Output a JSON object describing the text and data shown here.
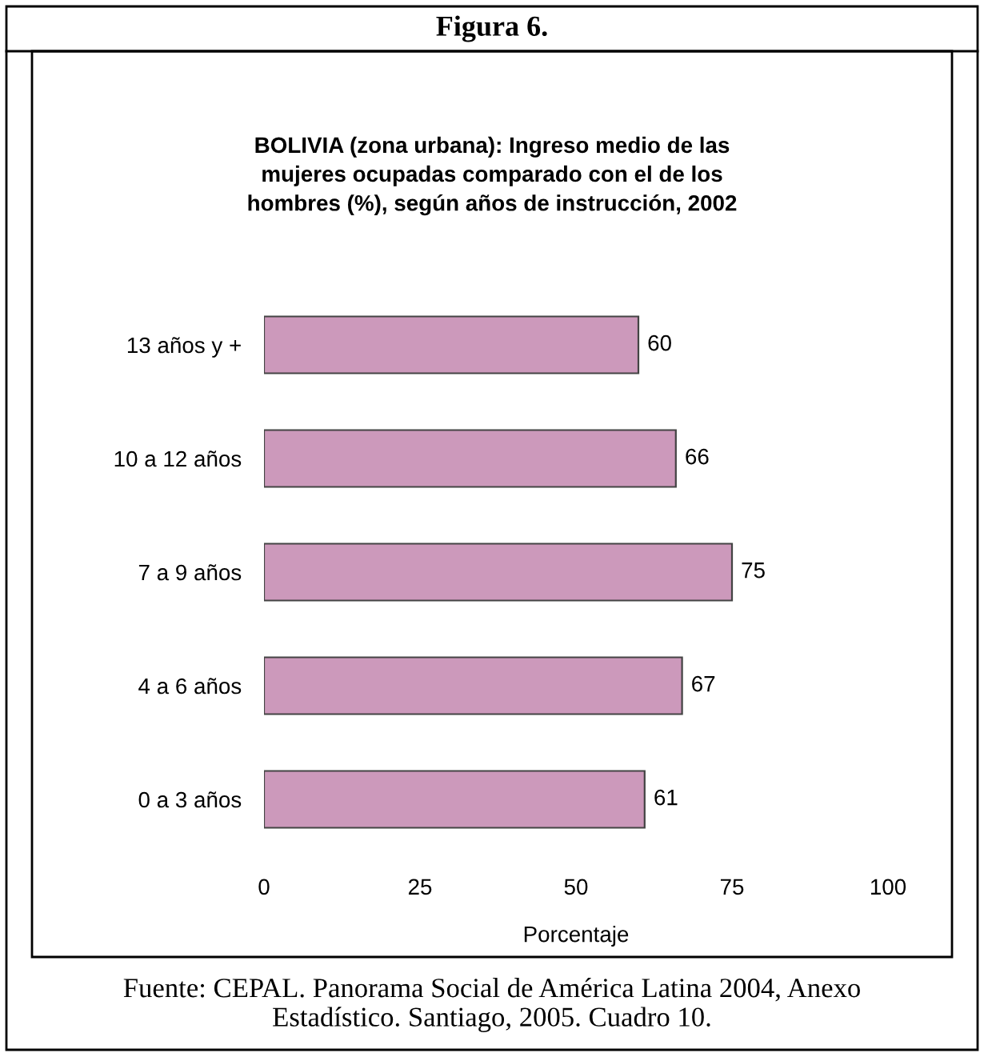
{
  "chart_data": {
    "type": "bar",
    "orientation": "horizontal",
    "title": "Figura 6.",
    "subtitle": "BOLIVIA (zona urbana): Ingreso medio de las mujeres ocupadas comparado con el de los hombres (%), según años de instrucción, 2002",
    "xlabel": "Porcentaje",
    "categories": [
      "13 años y +",
      "10 a 12 años",
      "7 a 9 años",
      "4 a 6 años",
      "0 a 3 años"
    ],
    "values": [
      60,
      66,
      75,
      67,
      61
    ],
    "color": "#cc99bb",
    "xlim": [
      0,
      100
    ],
    "xticks": [
      0,
      25,
      50,
      75,
      100
    ],
    "data_labels": true,
    "grid": false,
    "legend": false,
    "annotations": [
      "Fuente: CEPAL. Panorama Social de América Latina 2004, Anexo Estadístico. Santiago, 2005. Cuadro 10."
    ]
  }
}
